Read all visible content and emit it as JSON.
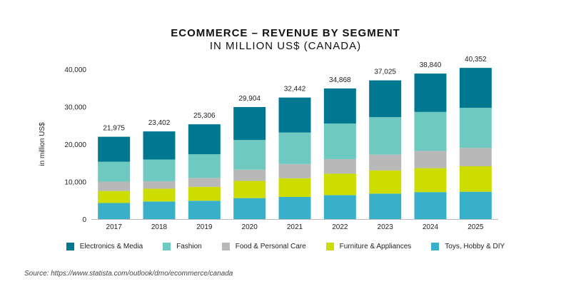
{
  "chart_data": {
    "type": "bar",
    "stacked": true,
    "title": "ECOMMERCE – REVENUE BY SEGMENT",
    "subtitle": "IN MILLION US$ (CANADA)",
    "xlabel": "",
    "ylabel": "in million US$",
    "ylim": [
      0,
      40000
    ],
    "yticks": [
      "0",
      "10,000",
      "20,000",
      "30,000",
      "40,000"
    ],
    "grid": false,
    "legend_position": "bottom",
    "categories": [
      "2017",
      "2018",
      "2019",
      "2020",
      "2021",
      "2022",
      "2023",
      "2024",
      "2025"
    ],
    "totals": [
      "21,975",
      "23,402",
      "25,306",
      "29,904",
      "32,442",
      "34,868",
      "37,025",
      "38,840",
      "40,352"
    ],
    "series": [
      {
        "name": "Toys, Hobby & DIY",
        "color": "#38b0c9",
        "values": [
          4300,
          4700,
          4900,
          5600,
          5900,
          6400,
          6800,
          7200,
          7300
        ]
      },
      {
        "name": "Furniture & Appliances",
        "color": "#cddd00",
        "values": [
          3200,
          3400,
          3700,
          4600,
          5000,
          5700,
          6200,
          6400,
          6800
        ]
      },
      {
        "name": "Food & Personal Care",
        "color": "#b8b8b8",
        "values": [
          2500,
          2000,
          2400,
          3000,
          3800,
          3900,
          4200,
          4600,
          4900
        ]
      },
      {
        "name": "Fashion",
        "color": "#6ecac0",
        "values": [
          5300,
          5800,
          6300,
          7900,
          8400,
          9500,
          10000,
          10400,
          10700
        ]
      },
      {
        "name": "Electronics & Media",
        "color": "#007891",
        "values": [
          6675,
          7502,
          8006,
          8804,
          9342,
          9368,
          9825,
          10240,
          10652
        ]
      }
    ],
    "legend_order": [
      "Electronics & Media",
      "Fashion",
      "Food & Personal Care",
      "Furniture & Appliances",
      "Toys, Hobby & DIY"
    ]
  },
  "source": "Source: https://www.statista.com/outlook/dmo/ecommerce/canada"
}
